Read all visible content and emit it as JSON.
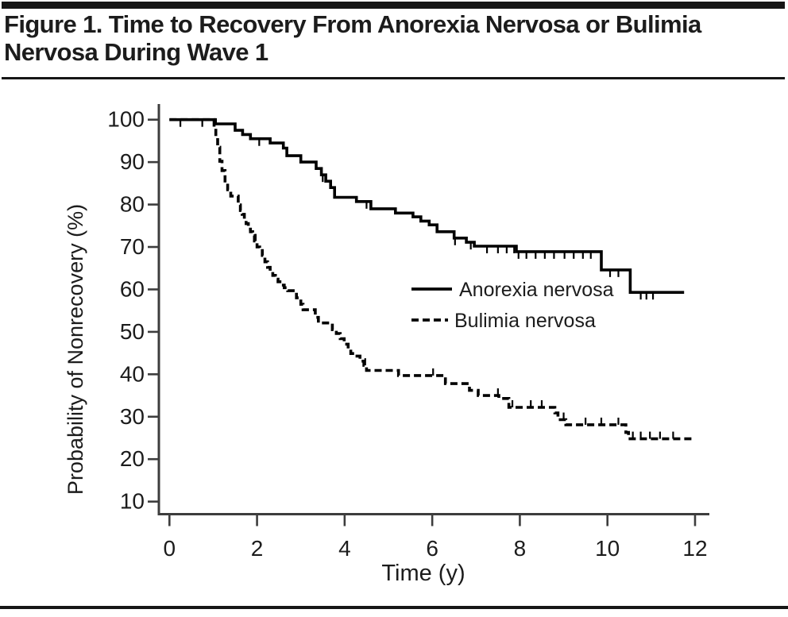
{
  "figure": {
    "title_line1": "Figure 1. Time to Recovery From Anorexia Nervosa or Bulimia",
    "title_line2": "Nervosa During Wave 1"
  },
  "colors": {
    "ink": "#1c1c1c",
    "axis": "#3d3d3d",
    "curve": "#000000"
  },
  "chart_data": {
    "type": "line",
    "variant": "kaplan_meier_step",
    "title": "Figure 1. Time to Recovery From Anorexia Nervosa or Bulimia Nervosa During Wave 1",
    "xlabel": "Time (y)",
    "ylabel": "Probability of Nonrecovery (%)",
    "xlim": [
      0,
      12.3
    ],
    "ylim": [
      5,
      103
    ],
    "x_ticks": [
      0,
      2,
      4,
      6,
      8,
      10,
      12
    ],
    "y_ticks": [
      100,
      90,
      80,
      70,
      60,
      50,
      40,
      30,
      20,
      10
    ],
    "grid": false,
    "legend": {
      "position": "inside-center-right",
      "entries": [
        "Anorexia nervosa",
        "Bulimia nervosa"
      ]
    },
    "series": [
      {
        "name": "Anorexia nervosa",
        "line_style": "solid",
        "color": "#000000",
        "end_time": 11.75,
        "censor_dir": "down",
        "points": [
          [
            0,
            100
          ],
          [
            1.05,
            99
          ],
          [
            1.5,
            97.5
          ],
          [
            1.67,
            96.5
          ],
          [
            1.85,
            95.5
          ],
          [
            2.3,
            94.5
          ],
          [
            2.6,
            93.3
          ],
          [
            2.68,
            91.5
          ],
          [
            3.0,
            90
          ],
          [
            3.35,
            88.5
          ],
          [
            3.47,
            87
          ],
          [
            3.57,
            85.5
          ],
          [
            3.68,
            84
          ],
          [
            3.77,
            81.7
          ],
          [
            4.27,
            80.7
          ],
          [
            4.6,
            79
          ],
          [
            5.16,
            78
          ],
          [
            5.56,
            77.1
          ],
          [
            5.74,
            76.1
          ],
          [
            5.93,
            75.2
          ],
          [
            6.11,
            73.6
          ],
          [
            6.5,
            72.1
          ],
          [
            6.78,
            71.1
          ],
          [
            6.96,
            70.2
          ],
          [
            7.92,
            68.9
          ],
          [
            9.86,
            64.6
          ],
          [
            10.52,
            59.3
          ]
        ],
        "censor_times": [
          0.25,
          0.75,
          2.05,
          3.5,
          4.5,
          6.52,
          6.88,
          7.25,
          7.5,
          7.7,
          7.87,
          7.97,
          8.15,
          8.36,
          8.57,
          8.78,
          9.02,
          9.23,
          9.44,
          9.62,
          10.06,
          10.25,
          10.76,
          10.89,
          11.04
        ]
      },
      {
        "name": "Bulimia nervosa",
        "line_style": "dashed",
        "color": "#000000",
        "end_time": 12.0,
        "censor_dir": "up",
        "points": [
          [
            0,
            100
          ],
          [
            1.02,
            97.5
          ],
          [
            1.06,
            95.8
          ],
          [
            1.1,
            93.5
          ],
          [
            1.15,
            90.2
          ],
          [
            1.2,
            88
          ],
          [
            1.27,
            85.2
          ],
          [
            1.33,
            83.5
          ],
          [
            1.4,
            82
          ],
          [
            1.57,
            79.9
          ],
          [
            1.62,
            78.6
          ],
          [
            1.66,
            77.7
          ],
          [
            1.71,
            76.4
          ],
          [
            1.75,
            75.5
          ],
          [
            1.8,
            74.2
          ],
          [
            1.85,
            73.6
          ],
          [
            1.9,
            72.7
          ],
          [
            1.94,
            71.4
          ],
          [
            2.0,
            70
          ],
          [
            2.06,
            69.6
          ],
          [
            2.12,
            68
          ],
          [
            2.18,
            66.5
          ],
          [
            2.24,
            65.2
          ],
          [
            2.3,
            64.3
          ],
          [
            2.36,
            63.3
          ],
          [
            2.42,
            62.4
          ],
          [
            2.48,
            61.8
          ],
          [
            2.56,
            61
          ],
          [
            2.62,
            60.4
          ],
          [
            2.7,
            59.7
          ],
          [
            2.9,
            58
          ],
          [
            3.0,
            56.5
          ],
          [
            3.05,
            55.2
          ],
          [
            3.33,
            53.4
          ],
          [
            3.4,
            52.1
          ],
          [
            3.72,
            50.5
          ],
          [
            3.81,
            49.6
          ],
          [
            3.9,
            48.4
          ],
          [
            3.99,
            47.1
          ],
          [
            4.08,
            45.9
          ],
          [
            4.14,
            44.9
          ],
          [
            4.23,
            44.3
          ],
          [
            4.35,
            43.1
          ],
          [
            4.44,
            42.1
          ],
          [
            4.5,
            40.9
          ],
          [
            5.23,
            39.7
          ],
          [
            6.3,
            37.8
          ],
          [
            6.85,
            36.2
          ],
          [
            7.05,
            35
          ],
          [
            7.52,
            34.3
          ],
          [
            7.75,
            32.2
          ],
          [
            8.8,
            30.9
          ],
          [
            8.87,
            29.3
          ],
          [
            9.05,
            28.1
          ],
          [
            10.42,
            26.3
          ],
          [
            10.48,
            24.8
          ]
        ],
        "censor_times": [
          1.97,
          4.47,
          6.02,
          7.5,
          7.83,
          8.25,
          8.5,
          9.0,
          9.5,
          9.86,
          10.25,
          10.58,
          10.76,
          10.97,
          11.2,
          11.5
        ]
      }
    ]
  }
}
